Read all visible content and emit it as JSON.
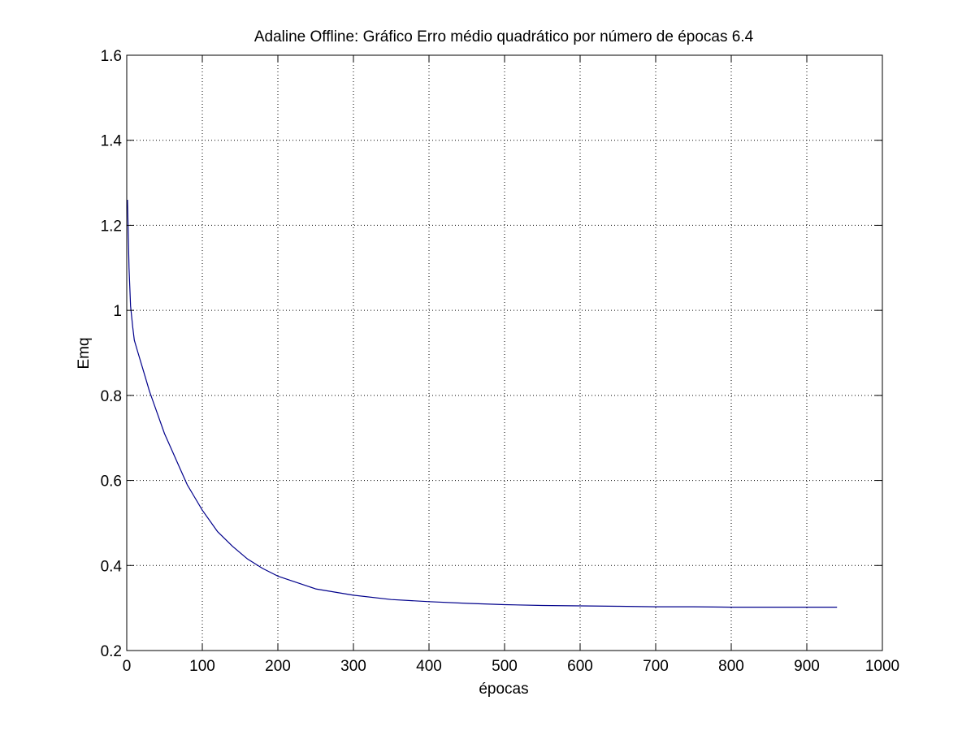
{
  "chart_data": {
    "type": "line",
    "title": "Adaline Offline: Gráfico Erro médio quadrático por número de épocas 6.4",
    "xlabel": "épocas",
    "ylabel": "Emq",
    "xlim": [
      0,
      1000
    ],
    "ylim": [
      0.2,
      1.6
    ],
    "xticks": [
      0,
      100,
      200,
      300,
      400,
      500,
      600,
      700,
      800,
      900,
      1000
    ],
    "xtick_labels": [
      "0",
      "100",
      "200",
      "300",
      "400",
      "500",
      "600",
      "700",
      "800",
      "900",
      "1000"
    ],
    "yticks": [
      0.2,
      0.4,
      0.6,
      0.8,
      1.0,
      1.2,
      1.4,
      1.6
    ],
    "ytick_labels": [
      "0.2",
      "0.4",
      "0.6",
      "0.8",
      "1",
      "1.2",
      "1.4",
      "1.6"
    ],
    "grid": true,
    "grid_style": "dotted",
    "line_color": "#00008b",
    "series": [
      {
        "x": [
          1,
          3,
          5,
          8,
          10,
          15,
          20,
          25,
          30,
          40,
          50,
          60,
          70,
          80,
          90,
          100,
          120,
          140,
          160,
          180,
          200,
          250,
          300,
          350,
          400,
          450,
          500,
          550,
          600,
          650,
          700,
          750,
          800,
          850,
          900,
          940
        ],
        "y": [
          1.26,
          1.1,
          1.01,
          0.96,
          0.93,
          0.9,
          0.87,
          0.84,
          0.81,
          0.76,
          0.71,
          0.67,
          0.63,
          0.59,
          0.56,
          0.53,
          0.48,
          0.445,
          0.415,
          0.393,
          0.375,
          0.345,
          0.33,
          0.32,
          0.315,
          0.311,
          0.308,
          0.306,
          0.305,
          0.304,
          0.303,
          0.303,
          0.302,
          0.302,
          0.302,
          0.302
        ]
      }
    ]
  }
}
